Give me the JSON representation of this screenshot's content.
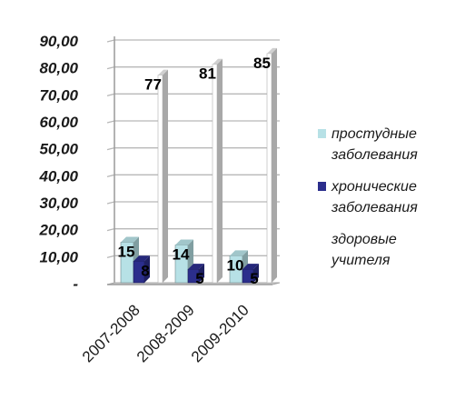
{
  "chart_data": {
    "type": "bar",
    "categories": [
      "2007-2008",
      "2008-2009",
      "2009-2010"
    ],
    "y_tick_labels": [
      "-",
      "10,00",
      "20,00",
      "30,00",
      "40,00",
      "50,00",
      "60,00",
      "70,00",
      "80,00",
      "90,00"
    ],
    "ylim": [
      0,
      90
    ],
    "grid": true,
    "legend_position": "right",
    "series": [
      {
        "name": "простудные заболевания",
        "values": [
          15,
          14,
          10
        ],
        "color": "#B7E1E6",
        "labels": [
          "15",
          "14",
          "10"
        ]
      },
      {
        "name": "хронические заболевания",
        "values": [
          8,
          5,
          5
        ],
        "color": "#2B2E8C",
        "labels": [
          "8",
          "5",
          "5"
        ]
      },
      {
        "name": "здоровые учителя",
        "values": [
          77,
          81,
          85
        ],
        "color": "#FFFFFF",
        "labels": [
          "77",
          "81",
          "85"
        ]
      }
    ],
    "legend_lines": [
      [
        "простудные",
        "заболевания"
      ],
      [
        "хронические",
        "заболевания"
      ],
      [
        "здоровые",
        "учителя"
      ]
    ]
  }
}
